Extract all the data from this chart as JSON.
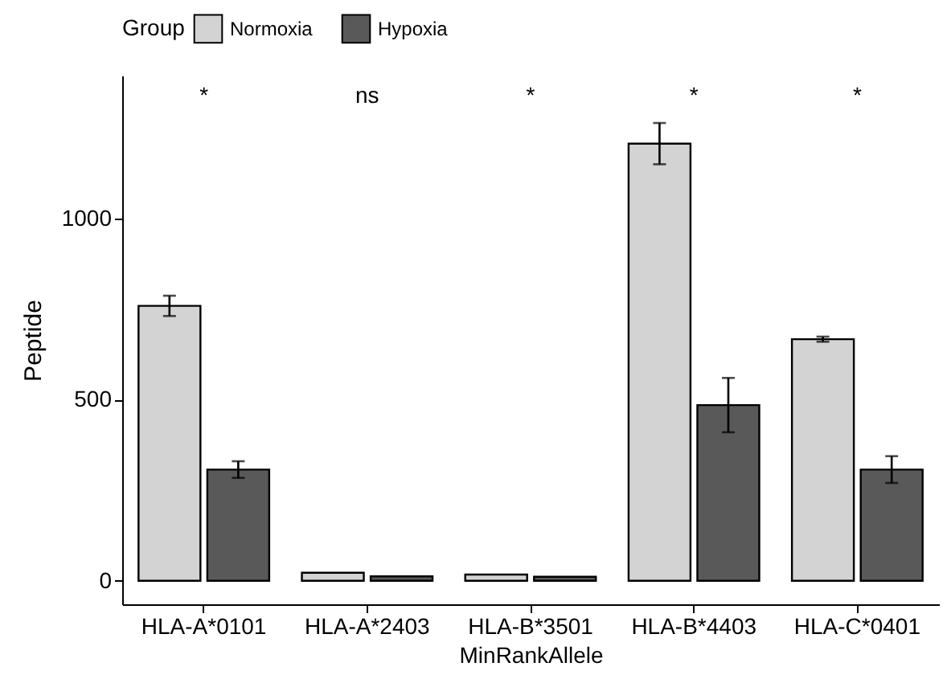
{
  "chart_data": {
    "type": "bar",
    "xlabel": "MinRankAllele",
    "ylabel": "Peptide",
    "legend_title": "Group",
    "legend": "top",
    "categories": [
      "HLA-A*0101",
      "HLA-A*2403",
      "HLA-B*3501",
      "HLA-B*4403",
      "HLA-C*0401"
    ],
    "series": [
      {
        "name": "Normoxia",
        "color": "#d3d3d3",
        "values": [
          759,
          22,
          17,
          1207,
          667
        ],
        "errors": [
          28,
          null,
          null,
          57,
          7
        ]
      },
      {
        "name": "Hypoxia",
        "color": "#595959",
        "values": [
          307,
          12,
          11,
          485,
          307
        ],
        "errors": [
          23,
          null,
          null,
          75,
          37
        ]
      }
    ],
    "ylim": [
      -65,
      1395
    ],
    "yticks": [
      0,
      500,
      1000
    ],
    "grid": false,
    "annotations": [
      "*",
      "ns",
      "*",
      "*",
      "*"
    ]
  }
}
